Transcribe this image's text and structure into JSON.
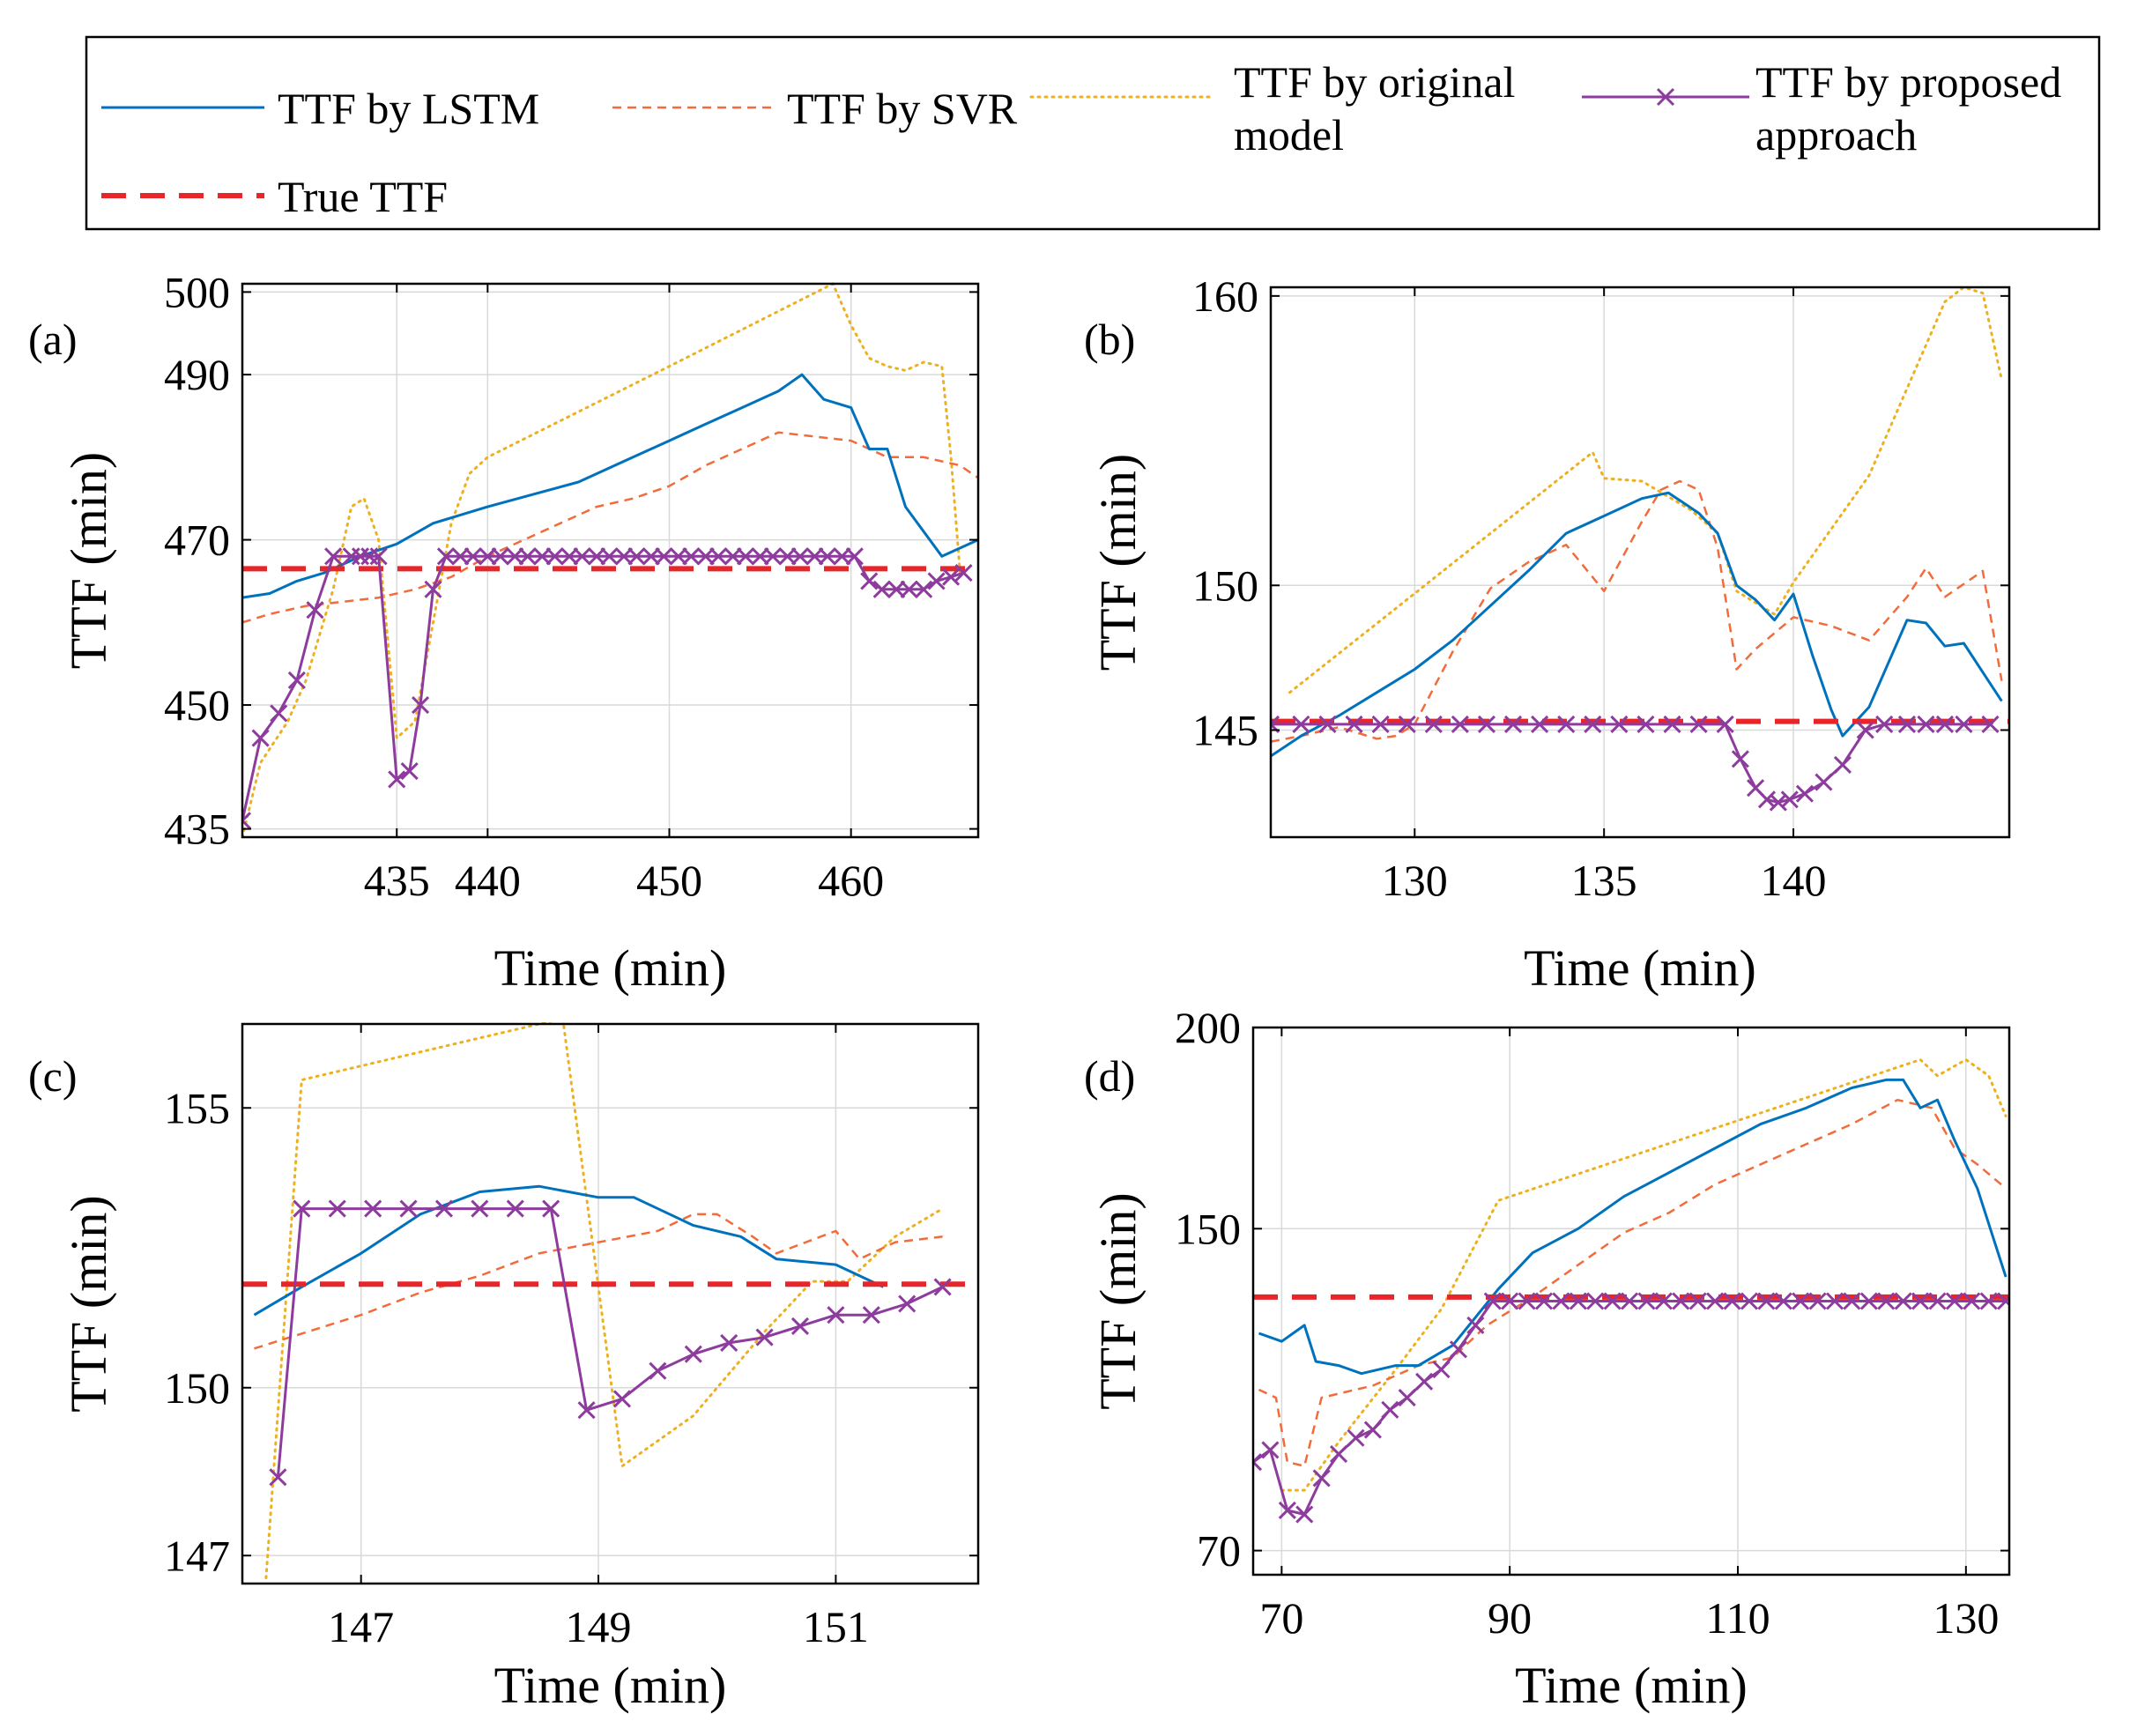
{
  "legend": {
    "entries": [
      {
        "key": "lstm",
        "lines": [
          "TTF by LSTM"
        ],
        "color": "#0072BD",
        "style": "solid"
      },
      {
        "key": "svr",
        "lines": [
          "TTF by SVR"
        ],
        "color": "#F26B3A",
        "style": "dashed"
      },
      {
        "key": "orig",
        "lines": [
          "TTF by original",
          "model"
        ],
        "color": "#EDB120",
        "style": "dotted"
      },
      {
        "key": "prop",
        "lines": [
          "TTF by proposed",
          "approach"
        ],
        "color": "#8E3B9E",
        "style": "solid-x"
      },
      {
        "key": "true",
        "lines": [
          "True TTF"
        ],
        "color": "#E8262A",
        "style": "thick-dashed"
      }
    ]
  },
  "chart_data": [
    {
      "panel": "(a)",
      "type": "line",
      "xlabel": "Time (min)",
      "ylabel": "TTF (min)",
      "xlim": [
        426.5,
        467
      ],
      "ylim": [
        434,
        501
      ],
      "xticks": [
        435,
        440,
        450,
        460
      ],
      "yticks": [
        435,
        450,
        470,
        490,
        500
      ],
      "grid": true,
      "series": [
        {
          "key": "lstm",
          "x": [
            426.5,
            428,
            429.5,
            431,
            433,
            435,
            437,
            440,
            445,
            448,
            450,
            452,
            454,
            456,
            457.3,
            458.5,
            460,
            461,
            462,
            463,
            465,
            467
          ],
          "y": [
            463,
            463.5,
            465,
            466,
            468,
            469.5,
            472,
            474,
            477,
            480,
            482,
            484,
            486,
            488,
            490,
            487,
            486,
            481,
            481,
            474,
            468,
            470
          ]
        },
        {
          "key": "svr",
          "x": [
            426.5,
            428,
            430,
            432,
            434,
            436,
            438,
            440,
            442,
            444,
            446,
            448,
            450,
            452,
            454,
            456,
            458,
            460,
            462,
            464,
            466,
            467
          ],
          "y": [
            460,
            461,
            462,
            462.5,
            463,
            464,
            465.5,
            468,
            470,
            472,
            474,
            475,
            476.5,
            479,
            481,
            483,
            482.5,
            482,
            480,
            480,
            479,
            477.5
          ]
        },
        {
          "key": "orig",
          "x": [
            426.5,
            427.5,
            429,
            430,
            431.5,
            432.5,
            433.2,
            434,
            435,
            436,
            437,
            438,
            439,
            440,
            450,
            459,
            460,
            461,
            462,
            463,
            464,
            465,
            465.5,
            466
          ],
          "y": [
            434,
            443,
            448,
            453,
            464,
            474,
            475,
            470,
            446,
            448,
            460,
            472,
            478,
            480,
            491,
            501,
            496,
            492,
            491,
            490.5,
            491.5,
            491,
            480,
            466
          ]
        },
        {
          "key": "prop",
          "x": [
            426.5,
            427.5,
            428.5,
            429.5,
            430.5,
            431.5,
            432.5,
            433,
            433.5,
            434,
            435,
            435.7,
            436.3,
            437,
            437.7,
            438.5,
            439.2,
            440,
            440.7,
            441.5,
            442.2,
            443,
            443.7,
            444.5,
            445.2,
            446,
            446.7,
            447.5,
            448.2,
            449,
            449.7,
            450.5,
            451.2,
            452,
            452.7,
            453.5,
            454.2,
            455,
            455.7,
            456.5,
            457.2,
            458,
            458.7,
            459.5,
            460.2,
            461,
            461.7,
            462.5,
            463.2,
            464,
            464.7,
            465.5,
            466.2
          ],
          "y": [
            436,
            446,
            449,
            453,
            461.5,
            468,
            468,
            468,
            468,
            468,
            441,
            442,
            450,
            464,
            468,
            468,
            468,
            468,
            468,
            468,
            468,
            468,
            468,
            468,
            468,
            468,
            468,
            468,
            468,
            468,
            468,
            468,
            468,
            468,
            468,
            468,
            468,
            468,
            468,
            468,
            468,
            468,
            468,
            468,
            468,
            465,
            464,
            464,
            464,
            464,
            465,
            465.5,
            466
          ]
        },
        {
          "key": "true",
          "x": [
            426.5,
            467
          ],
          "y": [
            466.5,
            466.5
          ]
        }
      ]
    },
    {
      "panel": "(b)",
      "type": "line",
      "xlabel": "Time (min)",
      "ylabel": "TTF (min)",
      "xlim": [
        126.2,
        145.7
      ],
      "ylim": [
        141.3,
        160.3
      ],
      "xticks": [
        130,
        135,
        140
      ],
      "yticks": [
        145,
        150,
        160
      ],
      "grid": true,
      "series": [
        {
          "key": "lstm",
          "x": [
            126.2,
            127,
            128,
            129,
            130,
            131,
            132,
            133,
            134,
            135,
            136,
            136.7,
            137.5,
            138,
            138.5,
            139,
            139.5,
            140,
            140.5,
            141,
            141.3,
            142,
            143,
            143.5,
            144,
            144.5,
            145.5
          ],
          "y": [
            144.1,
            144.8,
            145.5,
            146.3,
            147.1,
            148.1,
            149.3,
            150.5,
            151.8,
            152.4,
            153,
            153.2,
            152.5,
            151.8,
            150,
            149.5,
            148.8,
            149.7,
            147.6,
            145.7,
            144.8,
            145.8,
            148.8,
            148.7,
            147.9,
            148,
            146
          ]
        },
        {
          "key": "svr",
          "x": [
            126.2,
            127,
            128,
            129,
            129.5,
            130,
            131,
            132,
            133,
            134,
            135,
            136,
            136.5,
            137,
            137.5,
            138,
            138.5,
            139,
            140,
            141,
            142,
            143,
            143.5,
            144,
            145,
            145.5
          ],
          "y": [
            144.6,
            144.8,
            145.1,
            144.7,
            144.8,
            145.2,
            147.7,
            149.9,
            150.8,
            151.4,
            149.8,
            152.2,
            153.3,
            153.6,
            153.3,
            151.3,
            147.1,
            147.8,
            148.9,
            148.6,
            148.1,
            149.6,
            150.6,
            149.6,
            150.5,
            146.7
          ]
        },
        {
          "key": "orig",
          "x": [
            126.7,
            129.5,
            132,
            134.7,
            135,
            136,
            137.3,
            138,
            138.5,
            139.5,
            140,
            142,
            144,
            144.5,
            145,
            145.5
          ],
          "y": [
            146.3,
            149.2,
            151.8,
            154.6,
            153.7,
            153.6,
            152.6,
            151.8,
            149.8,
            149,
            150.1,
            153.8,
            159.8,
            160.3,
            160.1,
            157.1
          ]
        },
        {
          "key": "prop",
          "x": [
            126.2,
            127,
            127.7,
            128.4,
            129.1,
            129.8,
            130.5,
            131.2,
            131.9,
            132.6,
            133.3,
            134,
            134.7,
            135.4,
            136.1,
            136.8,
            137.5,
            138.2,
            138.6,
            139,
            139.3,
            139.6,
            139.9,
            140.3,
            140.8,
            141.3,
            141.9,
            142.4,
            143,
            143.5,
            144,
            144.5,
            145.2
          ],
          "y": [
            145.2,
            145.2,
            145.2,
            145.2,
            145.2,
            145.2,
            145.2,
            145.2,
            145.2,
            145.2,
            145.2,
            145.2,
            145.2,
            145.2,
            145.2,
            145.2,
            145.2,
            145.2,
            144,
            143,
            142.6,
            142.5,
            142.6,
            142.8,
            143.2,
            143.8,
            145,
            145.2,
            145.2,
            145.2,
            145.2,
            145.2,
            145.2
          ]
        },
        {
          "key": "true",
          "x": [
            126.2,
            145.7
          ],
          "y": [
            145.3,
            145.3
          ]
        }
      ]
    },
    {
      "panel": "(c)",
      "type": "line",
      "xlabel": "Time (min)",
      "ylabel": "TTF (min)",
      "xlim": [
        146.0,
        152.2
      ],
      "ylim": [
        146.5,
        156.5
      ],
      "xticks": [
        147,
        149,
        151
      ],
      "yticks": [
        147,
        150,
        155
      ],
      "grid": true,
      "series": [
        {
          "key": "lstm",
          "x": [
            146.1,
            146.5,
            147,
            147.5,
            148,
            148.5,
            149,
            149.3,
            149.8,
            150.2,
            150.5,
            151,
            151.4
          ],
          "y": [
            151.3,
            151.8,
            152.4,
            153.1,
            153.5,
            153.6,
            153.4,
            153.4,
            152.9,
            152.7,
            152.3,
            152.2,
            151.8
          ]
        },
        {
          "key": "svr",
          "x": [
            146.1,
            147,
            147.5,
            148,
            148.5,
            149,
            149.5,
            149.8,
            150,
            150.3,
            150.5,
            151,
            151.2,
            151.5,
            151.9
          ],
          "y": [
            150.7,
            151.3,
            151.7,
            152,
            152.4,
            152.6,
            152.8,
            153.1,
            153.1,
            152.7,
            152.4,
            152.8,
            152.3,
            152.6,
            152.7
          ]
        },
        {
          "key": "orig",
          "x": [
            146.2,
            146.5,
            148.7,
            149.2,
            149.8,
            150.4,
            150.8,
            151.1,
            151.5,
            151.9
          ],
          "y": [
            146.6,
            155.5,
            156.6,
            148.6,
            149.5,
            151,
            151.9,
            151.9,
            152.7,
            153.2
          ]
        },
        {
          "key": "prop",
          "x": [
            146.3,
            146.5,
            146.8,
            147.1,
            147.4,
            147.7,
            148,
            148.3,
            148.6,
            148.9,
            149.2,
            149.5,
            149.8,
            150.1,
            150.4,
            150.7,
            151,
            151.3,
            151.6,
            151.9
          ],
          "y": [
            148.4,
            153.2,
            153.2,
            153.2,
            153.2,
            153.2,
            153.2,
            153.2,
            153.2,
            149.6,
            149.8,
            150.3,
            150.6,
            150.8,
            150.9,
            151.1,
            151.3,
            151.3,
            151.5,
            151.8
          ]
        },
        {
          "key": "true",
          "x": [
            146.0,
            152.2
          ],
          "y": [
            151.85,
            151.85
          ]
        }
      ]
    },
    {
      "panel": "(d)",
      "type": "line",
      "xlabel": "Time (min)",
      "ylabel": "TTF (min)",
      "xlim": [
        67.5,
        133.8
      ],
      "ylim": [
        64,
        200
      ],
      "xticks": [
        70,
        90,
        110,
        130
      ],
      "yticks": [
        70,
        150,
        200
      ],
      "grid": true,
      "series": [
        {
          "key": "lstm",
          "x": [
            68,
            70,
            72,
            73,
            75,
            77,
            80,
            82,
            85,
            87,
            89,
            92,
            96,
            100,
            104,
            108,
            112,
            116,
            120,
            123,
            124.5,
            126,
            127.5,
            129,
            131,
            133.5
          ],
          "y": [
            124,
            122,
            126,
            117,
            116,
            114,
            116,
            116,
            121,
            128,
            135,
            144,
            150,
            158,
            164,
            170,
            176,
            180,
            185,
            187,
            187,
            180,
            182,
            172,
            160,
            138
          ]
        },
        {
          "key": "svr",
          "x": [
            68,
            69.5,
            70.5,
            72,
            73.5,
            75,
            78,
            82,
            85,
            88,
            92,
            96,
            100,
            104,
            108,
            112,
            116,
            120,
            124,
            127,
            129,
            131,
            133.5
          ],
          "y": [
            110,
            108,
            92,
            91,
            108,
            109,
            111,
            116,
            118,
            126,
            133,
            141,
            149,
            154,
            161,
            166,
            171,
            176,
            182,
            180,
            170,
            166,
            160
          ]
        },
        {
          "key": "orig",
          "x": [
            70,
            72,
            75,
            80,
            84,
            89,
            126,
            127.5,
            130,
            132,
            133.5
          ],
          "y": [
            85,
            85,
            97,
            115,
            130,
            157,
            192,
            188,
            192,
            188,
            178
          ]
        },
        {
          "key": "prop",
          "x": [
            67.5,
            69,
            70.5,
            72,
            73.5,
            75,
            76.5,
            78,
            79.5,
            81,
            82.5,
            84,
            85.5,
            87,
            88.5,
            90,
            91.5,
            93,
            94.5,
            96,
            97.5,
            99,
            100.5,
            102,
            103.5,
            105,
            106.5,
            108,
            109.5,
            111,
            112.5,
            114,
            115.5,
            117,
            118.5,
            120,
            121.5,
            123,
            124.5,
            126,
            127.5,
            129,
            130.5,
            132,
            133.5
          ],
          "y": [
            92,
            95,
            80,
            79,
            88,
            94,
            98,
            100,
            105,
            108,
            112,
            115,
            120,
            126,
            132,
            132,
            132,
            132,
            132,
            132,
            132,
            132,
            132,
            132,
            132,
            132,
            132,
            132,
            132,
            132,
            132,
            132,
            132,
            132,
            132,
            132,
            132,
            132,
            132,
            132,
            132,
            132,
            132,
            132,
            132
          ]
        },
        {
          "key": "true",
          "x": [
            67.5,
            133.8
          ],
          "y": [
            133,
            133
          ]
        }
      ]
    }
  ]
}
